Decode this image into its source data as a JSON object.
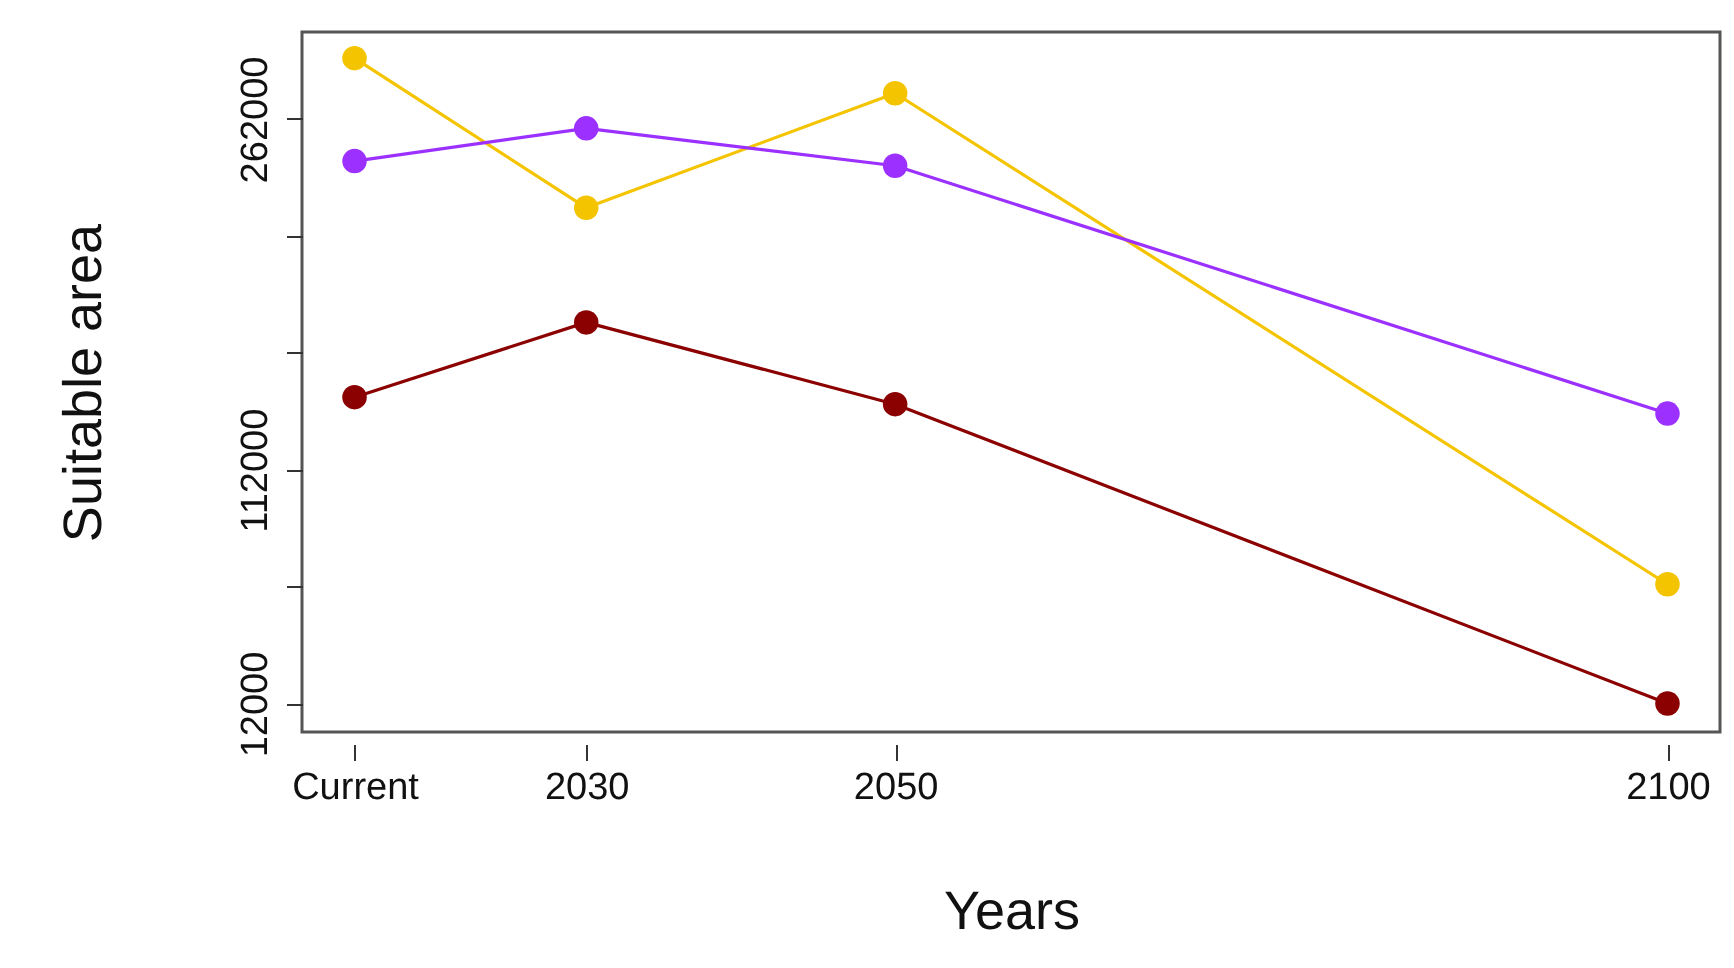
{
  "chart_data": {
    "type": "line",
    "xlabel": "Years",
    "ylabel": "Suitable area",
    "x": [
      2015,
      2030,
      2050,
      2100
    ],
    "series": [
      {
        "color": "#f5c400",
        "values": [
          288000,
          224000,
          273000,
          63000
        ]
      },
      {
        "color": "#9b30ff",
        "values": [
          244000,
          258000,
          242000,
          136000
        ]
      },
      {
        "color": "#8b0000",
        "values": [
          143000,
          175000,
          140000,
          12000
        ]
      }
    ],
    "xlim": [
      2011.6,
      2103.4
    ],
    "xticks": [
      {
        "value": 2015,
        "label": "Current"
      },
      2030,
      2050,
      2100
    ],
    "ylim": [
      -200,
      299200
    ],
    "yticks": [
      12000,
      {
        "value": 62000,
        "label": null
      },
      112000,
      {
        "value": 162000,
        "label": null
      },
      {
        "value": 212000,
        "label": null
      },
      262000
    ],
    "grid": false,
    "marker": "circle",
    "line_style": "solid"
  }
}
